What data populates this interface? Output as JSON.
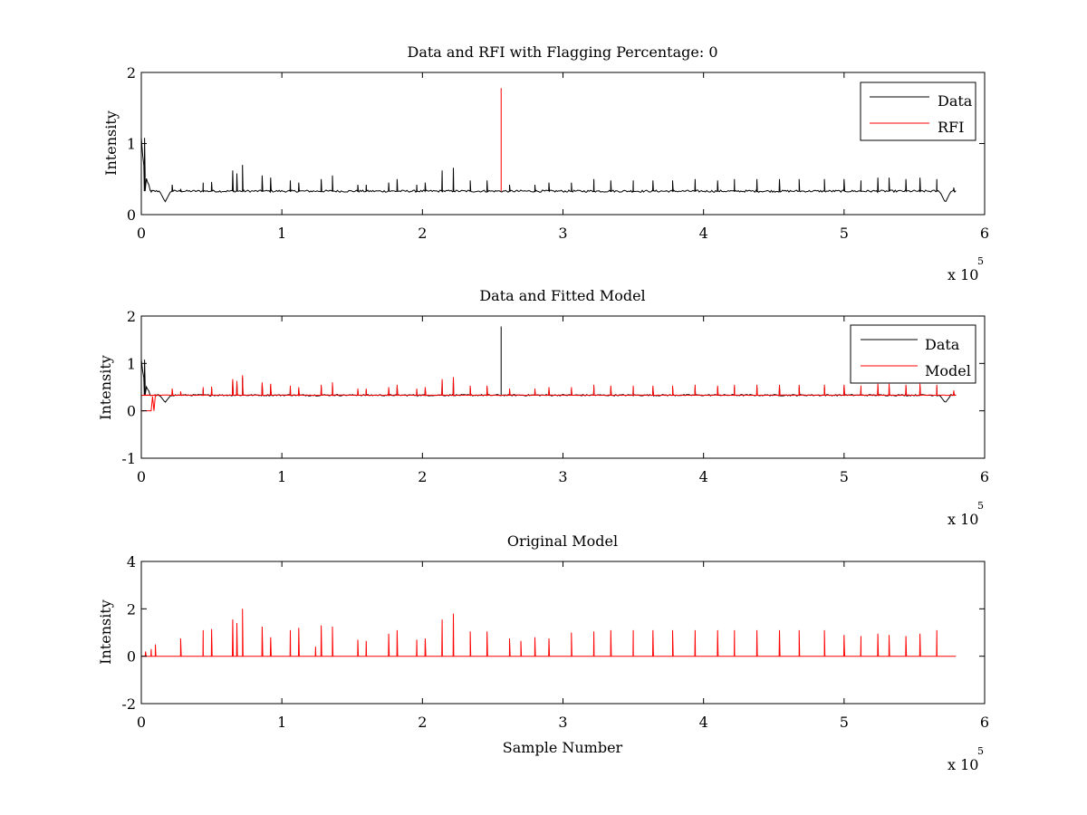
{
  "colors": {
    "data": "#000000",
    "red": "#ff0000",
    "frame": "#000000"
  },
  "chart_data": [
    {
      "type": "line",
      "title": "Data and RFI with Flagging Percentage: 0",
      "xlabel": "",
      "ylabel": "Intensity",
      "xlim": [
        0,
        600000
      ],
      "ylim": [
        0,
        2
      ],
      "xticks": [
        0,
        1,
        2,
        3,
        4,
        5,
        6
      ],
      "yticks": [
        0,
        1,
        2
      ],
      "x_multiplier": {
        "base": "x 10",
        "exp": "5"
      },
      "grid": false,
      "legend": "top-right",
      "baseline": 0.33,
      "x_end": 580000,
      "series": [
        {
          "name": "Data",
          "color": "#000000",
          "peaks": [
            [
              2300,
              1.08
            ],
            [
              7000,
              0.32
            ],
            [
              22000,
              0.42
            ],
            [
              28000,
              0.36
            ],
            [
              44000,
              0.45
            ],
            [
              50000,
              0.46
            ],
            [
              65000,
              0.62
            ],
            [
              68000,
              0.58
            ],
            [
              72000,
              0.7
            ],
            [
              86000,
              0.55
            ],
            [
              92000,
              0.52
            ],
            [
              106000,
              0.48
            ],
            [
              112000,
              0.45
            ],
            [
              128000,
              0.5
            ],
            [
              136000,
              0.55
            ],
            [
              154000,
              0.42
            ],
            [
              160000,
              0.42
            ],
            [
              176000,
              0.45
            ],
            [
              182000,
              0.5
            ],
            [
              196000,
              0.42
            ],
            [
              202000,
              0.45
            ],
            [
              214000,
              0.62
            ],
            [
              222000,
              0.66
            ],
            [
              234000,
              0.48
            ],
            [
              246000,
              0.48
            ],
            [
              262000,
              0.42
            ],
            [
              280000,
              0.42
            ],
            [
              290000,
              0.45
            ],
            [
              306000,
              0.45
            ],
            [
              322000,
              0.5
            ],
            [
              334000,
              0.48
            ],
            [
              350000,
              0.48
            ],
            [
              364000,
              0.48
            ],
            [
              378000,
              0.48
            ],
            [
              394000,
              0.5
            ],
            [
              410000,
              0.48
            ],
            [
              422000,
              0.5
            ],
            [
              438000,
              0.5
            ],
            [
              454000,
              0.5
            ],
            [
              468000,
              0.5
            ],
            [
              486000,
              0.5
            ],
            [
              500000,
              0.5
            ],
            [
              512000,
              0.48
            ],
            [
              524000,
              0.52
            ],
            [
              532000,
              0.52
            ],
            [
              544000,
              0.5
            ],
            [
              554000,
              0.52
            ],
            [
              566000,
              0.5
            ],
            [
              578000,
              0.38
            ]
          ],
          "dips": [
            [
              17000,
              0.18
            ],
            [
              572000,
              0.17
            ]
          ]
        },
        {
          "name": "RFI",
          "color": "#ff0000",
          "spike": [
            256000,
            1.78
          ]
        }
      ]
    },
    {
      "type": "line",
      "title": "Data and Fitted Model",
      "xlabel": "",
      "ylabel": "Intensity",
      "xlim": [
        0,
        600000
      ],
      "ylim": [
        -1,
        2
      ],
      "xticks": [
        0,
        1,
        2,
        3,
        4,
        5,
        6
      ],
      "yticks": [
        -1,
        0,
        1,
        2
      ],
      "x_multiplier": {
        "base": "x 10",
        "exp": "5"
      },
      "grid": false,
      "legend": "top-right",
      "baseline": 0.33,
      "x_end": 580000,
      "series": [
        {
          "name": "Data",
          "color": "#000000",
          "spike": [
            256000,
            1.78
          ]
        },
        {
          "name": "Model",
          "color": "#ff0000"
        }
      ]
    },
    {
      "type": "line",
      "title": "Original Model",
      "xlabel": "Sample Number",
      "ylabel": "Intensity",
      "xlim": [
        0,
        600000
      ],
      "ylim": [
        -2,
        4
      ],
      "xticks": [
        0,
        1,
        2,
        3,
        4,
        5,
        6
      ],
      "yticks": [
        -2,
        0,
        2,
        4
      ],
      "x_multiplier": {
        "base": "x 10",
        "exp": "5"
      },
      "grid": false,
      "legend": "none",
      "baseline": 0,
      "x_end": 580000,
      "series": [
        {
          "name": "",
          "color": "#ff0000",
          "peaks": [
            [
              3000,
              0.2
            ],
            [
              7000,
              0.3
            ],
            [
              10000,
              0.5
            ],
            [
              28000,
              0.75
            ],
            [
              44000,
              1.1
            ],
            [
              50000,
              1.15
            ],
            [
              65000,
              1.55
            ],
            [
              68000,
              1.4
            ],
            [
              72000,
              2.0
            ],
            [
              86000,
              1.25
            ],
            [
              92000,
              0.8
            ],
            [
              106000,
              1.1
            ],
            [
              112000,
              1.2
            ],
            [
              124000,
              0.4
            ],
            [
              128000,
              1.3
            ],
            [
              136000,
              1.25
            ],
            [
              154000,
              0.7
            ],
            [
              160000,
              0.65
            ],
            [
              176000,
              0.95
            ],
            [
              182000,
              1.1
            ],
            [
              196000,
              0.7
            ],
            [
              202000,
              0.75
            ],
            [
              214000,
              1.55
            ],
            [
              222000,
              1.8
            ],
            [
              234000,
              1.05
            ],
            [
              246000,
              1.05
            ],
            [
              262000,
              0.75
            ],
            [
              270000,
              0.65
            ],
            [
              280000,
              0.8
            ],
            [
              290000,
              0.75
            ],
            [
              306000,
              1.0
            ],
            [
              322000,
              1.05
            ],
            [
              334000,
              1.1
            ],
            [
              350000,
              1.1
            ],
            [
              364000,
              1.1
            ],
            [
              378000,
              1.1
            ],
            [
              394000,
              1.1
            ],
            [
              410000,
              1.1
            ],
            [
              422000,
              1.1
            ],
            [
              438000,
              1.1
            ],
            [
              454000,
              1.1
            ],
            [
              468000,
              1.1
            ],
            [
              486000,
              1.1
            ],
            [
              500000,
              0.9
            ],
            [
              512000,
              0.85
            ],
            [
              524000,
              0.95
            ],
            [
              532000,
              0.9
            ],
            [
              544000,
              0.85
            ],
            [
              554000,
              0.95
            ],
            [
              566000,
              1.1
            ]
          ]
        }
      ]
    }
  ]
}
